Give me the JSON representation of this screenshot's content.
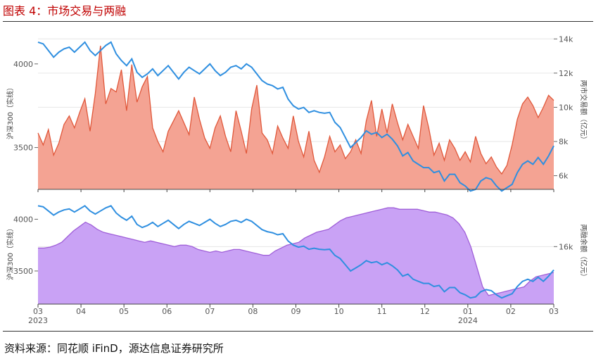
{
  "figure_title": "图表 4：市场交易与两融",
  "source_note": "资料来源：同花顺 iFinD，源达信息证券研究所",
  "colors": {
    "index_line": "#2f8fe0",
    "turnover_fill": "#f4a393",
    "turnover_line": "#e0573a",
    "margin_fill": "#c9a2f5",
    "margin_line": "#9f5fd8"
  },
  "chart_data": [
    {
      "type": "area",
      "left_axis": {
        "label": "沪深300（实线）",
        "ticks": [
          "4000",
          "3500"
        ],
        "tick_values": [
          4000,
          3500
        ],
        "range": [
          3250,
          4180
        ]
      },
      "right_axis": {
        "label": "两市交易额（亿元）",
        "ticks": [
          "14k",
          "12k",
          "10k",
          "8k",
          "6k"
        ],
        "tick_values": [
          14,
          12,
          10,
          8,
          6
        ],
        "range": [
          5.2,
          14.3
        ]
      },
      "series": [
        {
          "role": "index",
          "axis": "left",
          "kind": "line",
          "values": [
            4130,
            4120,
            4080,
            4040,
            4070,
            4090,
            4100,
            4070,
            4100,
            4130,
            4080,
            4050,
            4080,
            4110,
            4130,
            4060,
            4020,
            3990,
            4030,
            3950,
            3920,
            3940,
            3970,
            3930,
            3960,
            3990,
            3950,
            3910,
            3950,
            3980,
            3960,
            3940,
            3970,
            4000,
            3960,
            3930,
            3950,
            3980,
            3990,
            3970,
            4000,
            3980,
            3940,
            3900,
            3880,
            3870,
            3850,
            3860,
            3790,
            3750,
            3730,
            3740,
            3710,
            3720,
            3710,
            3705,
            3710,
            3650,
            3620,
            3560,
            3500,
            3530,
            3560,
            3600,
            3580,
            3590,
            3560,
            3580,
            3550,
            3510,
            3450,
            3470,
            3420,
            3400,
            3380,
            3380,
            3350,
            3360,
            3300,
            3340,
            3340,
            3290,
            3270,
            3240,
            3250,
            3300,
            3320,
            3310,
            3270,
            3240,
            3260,
            3280,
            3350,
            3400,
            3420,
            3400,
            3440,
            3400,
            3450,
            3510
          ]
        },
        {
          "role": "turnover",
          "axis": "right",
          "kind": "area",
          "values": [
            8.5,
            7.8,
            8.7,
            7.2,
            7.9,
            9.0,
            9.5,
            8.8,
            9.7,
            10.5,
            8.6,
            10.8,
            13.6,
            10.2,
            11.1,
            10.9,
            12.2,
            9.8,
            12.5,
            10.3,
            11.2,
            11.8,
            8.8,
            8.0,
            7.4,
            8.6,
            9.2,
            9.8,
            9.1,
            8.4,
            10.6,
            9.3,
            8.2,
            7.6,
            8.8,
            9.5,
            8.3,
            7.4,
            9.8,
            8.6,
            7.3,
            9.9,
            11.3,
            8.5,
            8.1,
            7.3,
            8.9,
            8.2,
            7.6,
            9.5,
            8.0,
            7.1,
            8.6,
            6.9,
            6.2,
            7.1,
            8.3,
            7.4,
            7.8,
            7.0,
            7.4,
            8.1,
            7.3,
            9.2,
            10.4,
            8.3,
            9.9,
            8.5,
            10.2,
            9.1,
            8.1,
            9.0,
            8.3,
            7.6,
            10.1,
            8.8,
            7.2,
            7.9,
            6.9,
            8.1,
            7.6,
            6.9,
            7.4,
            6.8,
            8.3,
            7.3,
            6.7,
            7.1,
            6.5,
            6.1,
            6.6,
            7.8,
            9.3,
            10.2,
            10.6,
            10.1,
            9.4,
            10.0,
            10.7,
            10.4
          ]
        }
      ]
    },
    {
      "type": "area",
      "left_axis": {
        "label": "沪深300（实线）",
        "ticks": [
          "4000",
          "3500"
        ],
        "tick_values": [
          4000,
          3500
        ],
        "range": [
          3180,
          4180
        ]
      },
      "right_axis": {
        "label": "两融余额（亿元）",
        "ticks": [
          "16k"
        ],
        "tick_values": [
          16
        ],
        "range": [
          14.0,
          17.6
        ]
      },
      "x_ticks": [
        "03\n2023",
        "04",
        "05",
        "06",
        "07",
        "08",
        "09",
        "10",
        "11",
        "12",
        "01\n2024",
        "02",
        "03"
      ],
      "series": [
        {
          "role": "index",
          "axis": "left",
          "kind": "line",
          "values": [
            4130,
            4120,
            4080,
            4040,
            4070,
            4090,
            4100,
            4070,
            4100,
            4130,
            4080,
            4050,
            4080,
            4110,
            4130,
            4060,
            4020,
            3990,
            4030,
            3950,
            3920,
            3940,
            3970,
            3930,
            3960,
            3990,
            3950,
            3910,
            3950,
            3980,
            3960,
            3940,
            3970,
            4000,
            3960,
            3930,
            3950,
            3980,
            3990,
            3970,
            4000,
            3980,
            3940,
            3900,
            3880,
            3870,
            3850,
            3860,
            3790,
            3750,
            3730,
            3740,
            3710,
            3720,
            3710,
            3705,
            3710,
            3650,
            3620,
            3560,
            3500,
            3530,
            3560,
            3600,
            3580,
            3590,
            3560,
            3580,
            3550,
            3510,
            3450,
            3470,
            3420,
            3400,
            3380,
            3380,
            3350,
            3360,
            3300,
            3340,
            3340,
            3290,
            3270,
            3240,
            3250,
            3300,
            3320,
            3310,
            3270,
            3240,
            3260,
            3280,
            3350,
            3400,
            3420,
            3400,
            3440,
            3400,
            3450,
            3510
          ]
        },
        {
          "role": "margin",
          "axis": "right",
          "kind": "area",
          "values": [
            15.95,
            15.95,
            15.98,
            16.05,
            16.15,
            16.35,
            16.55,
            16.7,
            16.85,
            16.75,
            16.6,
            16.5,
            16.45,
            16.4,
            16.35,
            16.3,
            16.25,
            16.2,
            16.15,
            16.2,
            16.15,
            16.1,
            16.05,
            16.0,
            16.05,
            16.05,
            16.0,
            15.9,
            15.85,
            15.8,
            15.85,
            15.8,
            15.85,
            15.9,
            15.9,
            15.85,
            15.8,
            15.75,
            15.7,
            15.7,
            15.85,
            15.95,
            16.05,
            16.1,
            16.15,
            16.3,
            16.4,
            16.5,
            16.55,
            16.6,
            16.75,
            16.9,
            17.0,
            17.05,
            17.1,
            17.15,
            17.2,
            17.25,
            17.3,
            17.35,
            17.35,
            17.3,
            17.3,
            17.3,
            17.3,
            17.25,
            17.2,
            17.2,
            17.15,
            17.1,
            17.0,
            16.8,
            16.5,
            16.0,
            15.3,
            14.6,
            14.3,
            14.35,
            14.4,
            14.45,
            14.5,
            14.55,
            14.6,
            14.8,
            14.95,
            15.0,
            15.05,
            15.1
          ]
        }
      ]
    }
  ]
}
